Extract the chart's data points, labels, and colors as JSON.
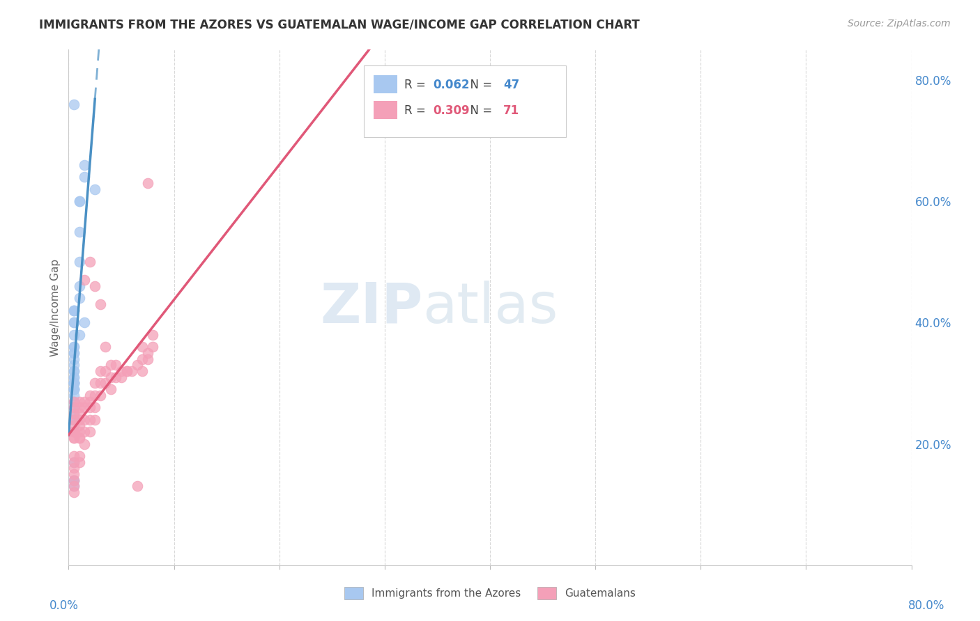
{
  "title": "IMMIGRANTS FROM THE AZORES VS GUATEMALAN WAGE/INCOME GAP CORRELATION CHART",
  "source": "Source: ZipAtlas.com",
  "ylabel": "Wage/Income Gap",
  "right_yticks": [
    "20.0%",
    "40.0%",
    "60.0%",
    "80.0%"
  ],
  "right_ytick_vals": [
    0.2,
    0.4,
    0.6,
    0.8
  ],
  "legend_bottom1": "Immigrants from the Azores",
  "legend_bottom2": "Guatemalans",
  "azores_color": "#a8c8f0",
  "guatemalan_color": "#f4a0b8",
  "trendline1_color": "#4a90c4",
  "trendline2_color": "#e05878",
  "R1": "0.062",
  "N1": "47",
  "R2": "0.309",
  "N2": "71",
  "xmin": 0.0,
  "xmax": 0.8,
  "ymin": 0.0,
  "ymax": 0.85,
  "azores_x": [
    0.005,
    0.015,
    0.015,
    0.025,
    0.01,
    0.01,
    0.01,
    0.01,
    0.01,
    0.01,
    0.005,
    0.005,
    0.005,
    0.005,
    0.005,
    0.005,
    0.005,
    0.005,
    0.005,
    0.005,
    0.005,
    0.005,
    0.005,
    0.005,
    0.005,
    0.005,
    0.005,
    0.005,
    0.005,
    0.005,
    0.005,
    0.005,
    0.005,
    0.005,
    0.005,
    0.005,
    0.005,
    0.005,
    0.005,
    0.005,
    0.005,
    0.005,
    0.005,
    0.005,
    0.01,
    0.015,
    0.005
  ],
  "azores_y": [
    0.76,
    0.66,
    0.64,
    0.62,
    0.6,
    0.6,
    0.55,
    0.5,
    0.46,
    0.44,
    0.42,
    0.42,
    0.4,
    0.4,
    0.38,
    0.36,
    0.36,
    0.35,
    0.35,
    0.34,
    0.33,
    0.32,
    0.32,
    0.31,
    0.31,
    0.3,
    0.3,
    0.3,
    0.3,
    0.3,
    0.29,
    0.29,
    0.29,
    0.29,
    0.28,
    0.27,
    0.26,
    0.25,
    0.24,
    0.24,
    0.17,
    0.14,
    0.14,
    0.13,
    0.38,
    0.4,
    0.42
  ],
  "guatemalan_x": [
    0.005,
    0.005,
    0.005,
    0.005,
    0.005,
    0.005,
    0.005,
    0.005,
    0.005,
    0.005,
    0.01,
    0.01,
    0.01,
    0.01,
    0.01,
    0.01,
    0.01,
    0.01,
    0.015,
    0.015,
    0.015,
    0.015,
    0.015,
    0.02,
    0.02,
    0.02,
    0.02,
    0.02,
    0.025,
    0.025,
    0.025,
    0.025,
    0.03,
    0.03,
    0.03,
    0.035,
    0.035,
    0.04,
    0.04,
    0.04,
    0.045,
    0.05,
    0.05,
    0.055,
    0.06,
    0.065,
    0.07,
    0.075,
    0.08,
    0.08,
    0.005,
    0.005,
    0.005,
    0.005,
    0.005,
    0.005,
    0.005,
    0.01,
    0.01,
    0.015,
    0.02,
    0.025,
    0.03,
    0.035,
    0.045,
    0.055,
    0.065,
    0.07,
    0.075,
    0.075,
    0.07
  ],
  "guatemalan_y": [
    0.27,
    0.26,
    0.25,
    0.24,
    0.23,
    0.22,
    0.22,
    0.22,
    0.21,
    0.21,
    0.27,
    0.26,
    0.25,
    0.24,
    0.23,
    0.22,
    0.21,
    0.21,
    0.27,
    0.26,
    0.24,
    0.22,
    0.2,
    0.28,
    0.27,
    0.26,
    0.24,
    0.22,
    0.3,
    0.28,
    0.26,
    0.24,
    0.32,
    0.3,
    0.28,
    0.32,
    0.3,
    0.33,
    0.31,
    0.29,
    0.33,
    0.32,
    0.31,
    0.32,
    0.32,
    0.33,
    0.32,
    0.34,
    0.38,
    0.36,
    0.18,
    0.17,
    0.16,
    0.15,
    0.14,
    0.13,
    0.12,
    0.18,
    0.17,
    0.47,
    0.5,
    0.46,
    0.43,
    0.36,
    0.31,
    0.32,
    0.13,
    0.34,
    0.63,
    0.35,
    0.36
  ]
}
